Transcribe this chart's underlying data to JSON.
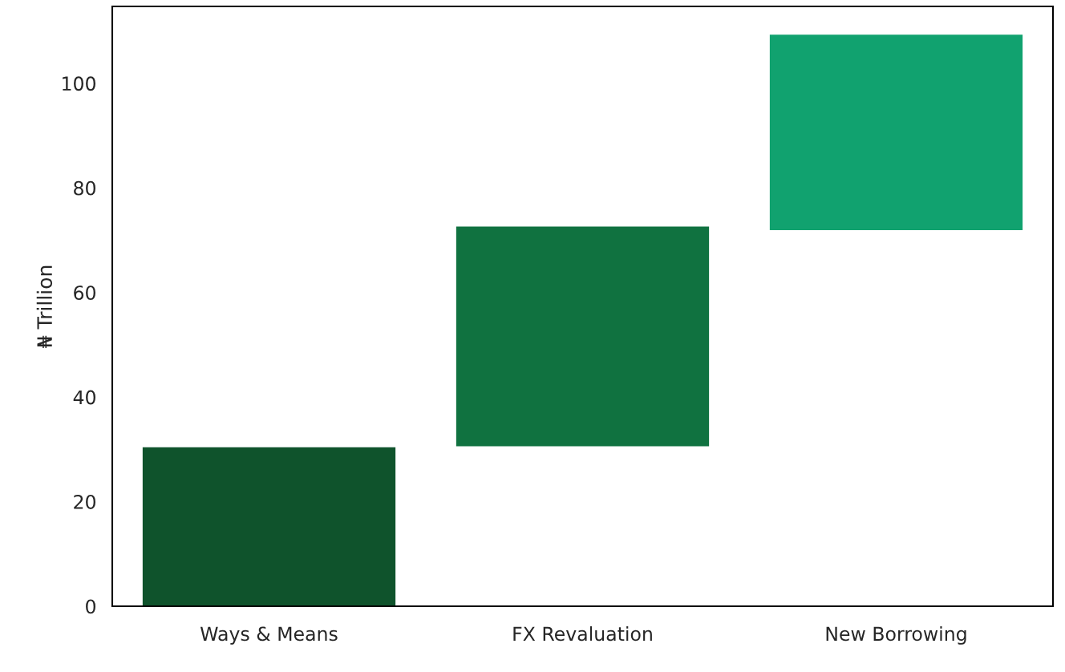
{
  "chart_data": {
    "type": "bar",
    "ylabel": "₦ Trillion",
    "categories": [
      "Ways & Means",
      "FX Revaluation",
      "New Borrowing"
    ],
    "base": [
      0,
      30.5,
      71.8
    ],
    "values": [
      30.5,
      42.2,
      37.6
    ],
    "colors": [
      "#0f532c",
      "#107240",
      "#11a26f"
    ],
    "ylim": [
      0,
      114.7
    ],
    "yticks": [
      0,
      20,
      40,
      60,
      80,
      100
    ],
    "grid": false,
    "legend": false
  }
}
